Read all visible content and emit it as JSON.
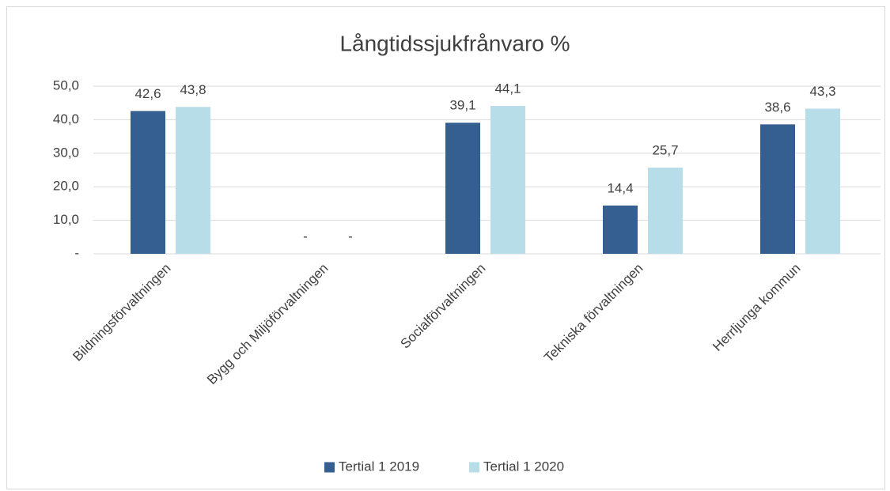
{
  "chart_data": {
    "type": "bar",
    "title": "Långtidssjukfrånvaro %",
    "categories": [
      "Bildningsförvaltningen",
      "Bygg och Miljöförvaltningen",
      "Socialförvaltningen",
      "Tekniska förvaltningen",
      "Herrljunga kommun"
    ],
    "series": [
      {
        "name": "Tertial 1 2019",
        "color": "#365f91",
        "values": [
          42.6,
          0,
          39.1,
          14.4,
          38.6
        ],
        "value_labels": [
          "42,6",
          "-",
          "39,1",
          "14,4",
          "38,6"
        ]
      },
      {
        "name": "Tertial 1 2020",
        "color": "#b7dde8",
        "values": [
          43.8,
          0,
          44.1,
          25.7,
          43.3
        ],
        "value_labels": [
          "43,8",
          "-",
          "44,1",
          "25,7",
          "43,3"
        ]
      }
    ],
    "ylim": [
      0,
      50
    ],
    "yticks": [
      {
        "value": 0,
        "label": "-"
      },
      {
        "value": 10,
        "label": "10,0"
      },
      {
        "value": 20,
        "label": "20,0"
      },
      {
        "value": 30,
        "label": "30,0"
      },
      {
        "value": 40,
        "label": "40,0"
      },
      {
        "value": 50,
        "label": "50,0"
      }
    ],
    "grid": true,
    "legend": "bottom"
  }
}
